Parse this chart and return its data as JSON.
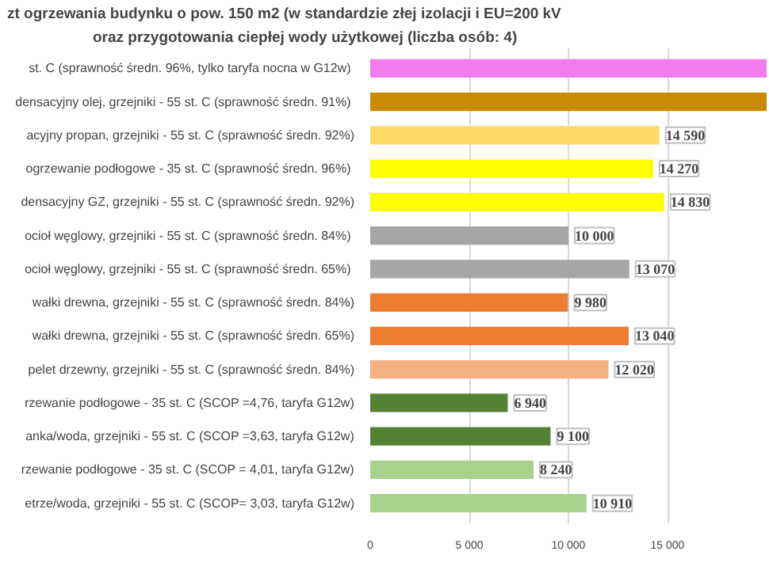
{
  "chart_data": {
    "type": "bar",
    "orientation": "horizontal",
    "title": "zt ogrzewania budynku  o pow. 150 m2 (w standardzie złej izolacji i EU=200 kV",
    "subtitle": "oraz przygotowania ciepłej wody użytkowej (liczba osób: 4)",
    "categories": [
      "st. C  (sprawność średn. 96%, tylko taryfa nocna w G12w)",
      "densacyjny olej,  grzejniki - 55 st. C (sprawność średn. 91%)",
      "acyjny propan, grzejniki - 55 st. C (sprawność średn. 92%)",
      " ogrzewanie podłogowe - 35 st. C (sprawność średn. 96%)",
      "densacyjny GZ, grzejniki - 55 st. C (sprawność średn. 92%)",
      "ocioł węglowy,  grzejniki - 55 st. C (sprawność średn. 84%)",
      "ocioł węglowy,  grzejniki - 55 st. C (sprawność średn. 65%)",
      "wałki drewna, grzejniki - 55 st. C (sprawność średn. 84%)",
      "wałki drewna, grzejniki - 55 st. C (sprawność średn. 65%)",
      "pelet drzewny, grzejniki - 55 st. C (sprawność średn. 84%)",
      "rzewanie podłogowe - 35 st. C (SCOP =4,76, taryfa G12w)",
      "anka/woda, grzejniki - 55 st. C (SCOP =3,63, taryfa G12w)",
      "rzewanie podłogowe - 35 st. C (SCOP = 4,01, taryfa G12w)",
      "etrze/woda, grzejniki - 55 st. C (SCOP= 3,03, taryfa G12w)"
    ],
    "values": [
      20000,
      20000,
      14590,
      14270,
      14830,
      10000,
      13070,
      9980,
      13040,
      12020,
      6940,
      9100,
      8240,
      10910
    ],
    "value_labels": [
      null,
      null,
      "14 590",
      "14 270",
      "14 830",
      "10 000",
      "13 070",
      "9 980",
      "13 040",
      "12 020",
      "6 940",
      "9 100",
      "8 240",
      "10 910"
    ],
    "colors": [
      "#f07cf0",
      "#c98a00",
      "#ffd966",
      "#ffff00",
      "#ffff00",
      "#a6a6a6",
      "#a6a6a6",
      "#ed7d31",
      "#ed7d31",
      "#f4b183",
      "#548235",
      "#548235",
      "#a9d18e",
      "#a9d18e"
    ],
    "xlim": [
      0,
      20000
    ],
    "xticks": [
      0,
      {
        "value": 5000,
        "label": "5 000"
      },
      {
        "value": 10000,
        "label": "10 000"
      },
      {
        "value": 15000,
        "label": "15 000"
      }
    ],
    "grid": "x"
  }
}
